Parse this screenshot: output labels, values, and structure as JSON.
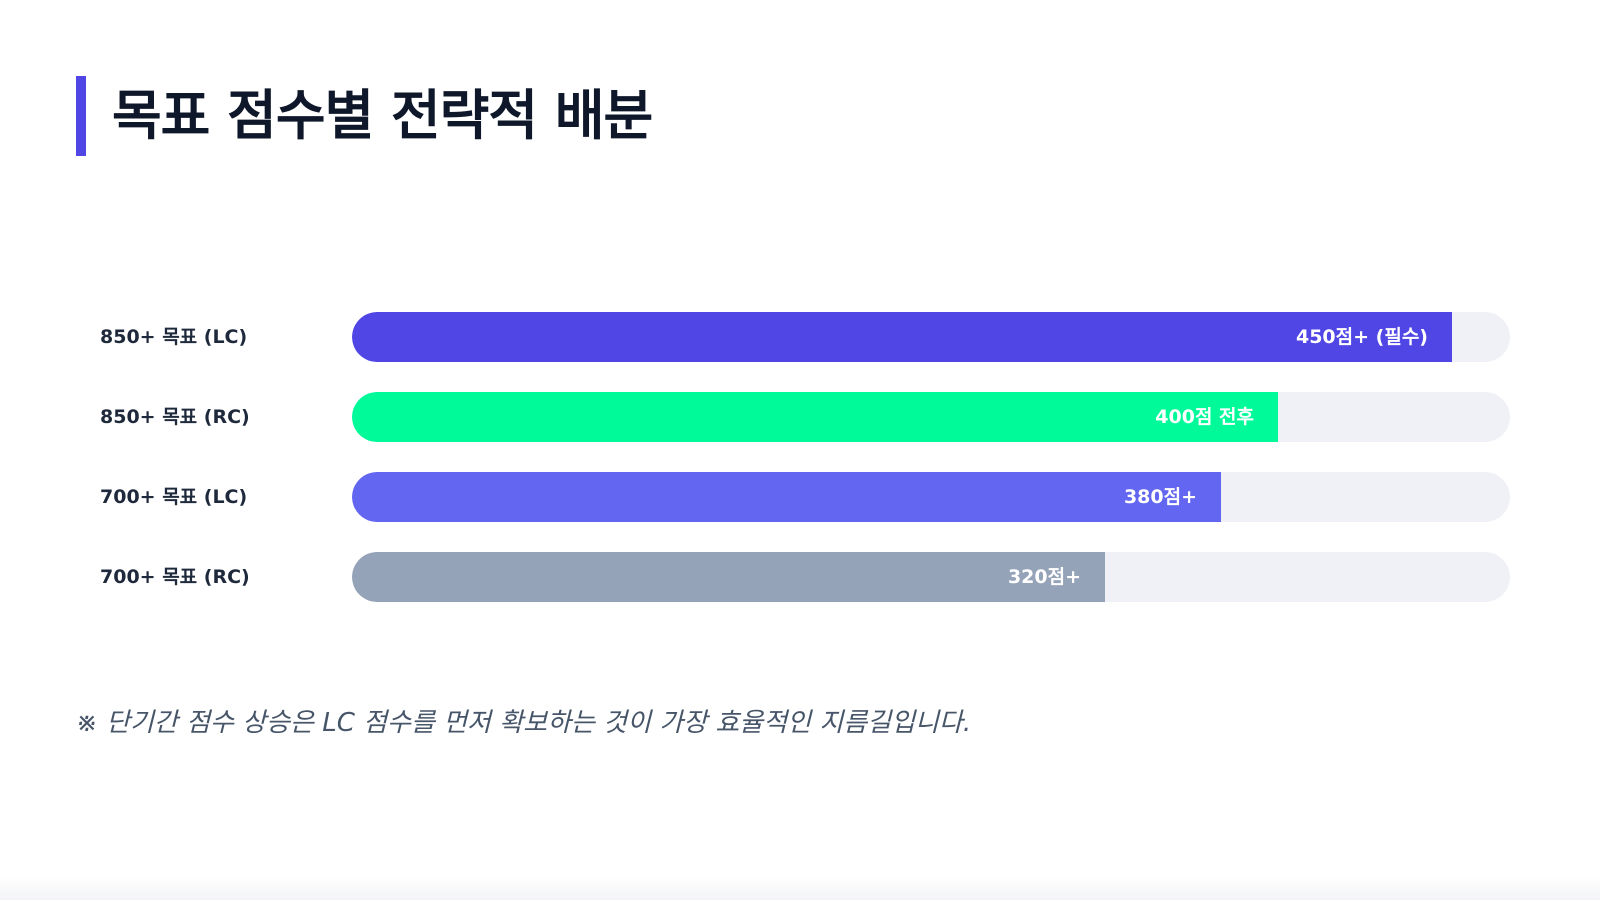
{
  "header": {
    "title": "목표 점수별 전략적 배분",
    "accent_color": "#4f46e5"
  },
  "chart_data": {
    "type": "bar",
    "orientation": "horizontal",
    "title": "",
    "xlabel": "",
    "ylabel": "",
    "xlim": [
      0,
      495
    ],
    "grid": false,
    "categories": [
      "850+ 목표 (LC)",
      "850+ 목표 (RC)",
      "700+ 목표 (LC)",
      "700+ 목표 (RC)"
    ],
    "values": [
      450,
      400,
      380,
      320
    ],
    "data_labels": [
      "450점+ (필수)",
      "400점 전후",
      "380점+",
      "320점+"
    ],
    "colors": [
      "#4f46e5",
      "#00fa9a",
      "#6366f1",
      "#94a3b8"
    ],
    "fill_fractions": [
      0.95,
      0.8,
      0.75,
      0.65
    ],
    "track_color": "#eff1f6"
  },
  "footnote": {
    "text": "※ 단기간 점수 상승은 LC 점수를 먼저 확보하는 것이 가장 효율적인 지름길입니다."
  }
}
